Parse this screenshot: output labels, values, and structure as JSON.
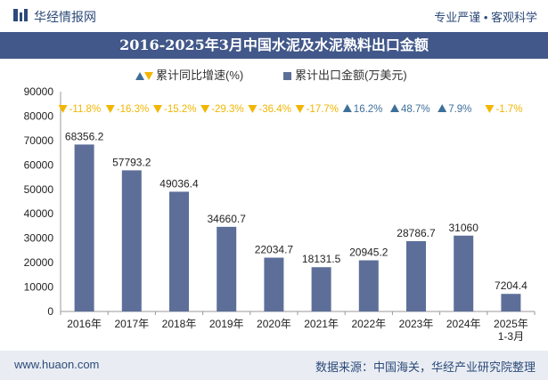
{
  "header": {
    "brand": "华经情报网",
    "tagline": "专业严谨 • 客观科学"
  },
  "title": "2016-2025年3月中国水泥及水泥熟料出口金额",
  "legend": {
    "growth": "累计同比增速(%)",
    "export": "累计出口金额(万美元)"
  },
  "footer": {
    "website": "www.huaon.com",
    "source": "数据来源：中国海关，华经产业研究院整理"
  },
  "colors": {
    "bar": "#5d6f99",
    "up": "#3d6f9a",
    "down": "#f2b600",
    "title_bg": "#42588a"
  },
  "chart_data": {
    "type": "bar",
    "categories": [
      "2016年",
      "2017年",
      "2018年",
      "2019年",
      "2020年",
      "2021年",
      "2022年",
      "2023年",
      "2024年",
      "2025年\n1-3月"
    ],
    "series": [
      {
        "name": "累计出口金额(万美元)",
        "values": [
          68356.2,
          57793.2,
          49036.4,
          34660.7,
          22034.7,
          18131.5,
          20945.2,
          28786.7,
          31060,
          7204.4
        ]
      },
      {
        "name": "累计同比增速(%)",
        "values": [
          -11.8,
          -16.3,
          -15.2,
          -29.3,
          -36.4,
          -17.7,
          16.2,
          48.7,
          7.9,
          -1.7
        ]
      }
    ],
    "value_labels": [
      "68356.2",
      "57793.2",
      "49036.4",
      "34660.7",
      "22034.7",
      "18131.5",
      "20945.2",
      "28786.7",
      "31060",
      "7204.4"
    ],
    "growth_labels": [
      "-11.8%",
      "-16.3%",
      "-15.2%",
      "-29.3%",
      "-36.4%",
      "-17.7%",
      "16.2%",
      "48.7%",
      "7.9%",
      "-1.7%"
    ],
    "yticks": [
      0,
      10000,
      20000,
      30000,
      40000,
      50000,
      60000,
      70000,
      80000,
      90000
    ],
    "ylim": [
      0,
      90000
    ]
  }
}
